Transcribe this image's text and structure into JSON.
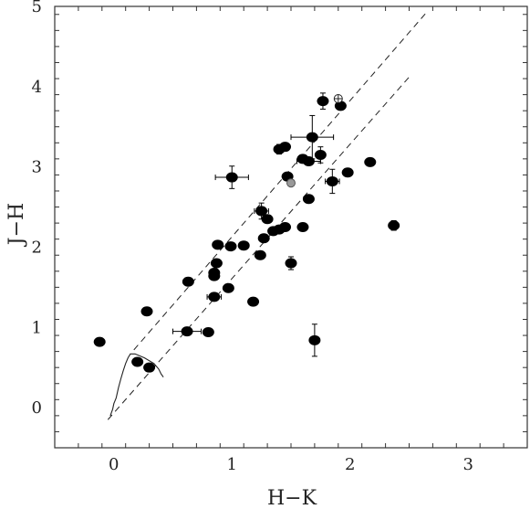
{
  "chart_data": {
    "type": "scatter",
    "title": "",
    "xlabel": "H−K",
    "ylabel": "J−H",
    "xlim": [
      -0.5,
      3.5
    ],
    "ylim": [
      -0.5,
      5
    ],
    "x_ticks": [
      "0",
      "1",
      "2",
      "3"
    ],
    "y_ticks": [
      "0",
      "1",
      "2",
      "3",
      "4",
      "5"
    ],
    "x_tick_values": [
      0,
      1,
      2,
      3
    ],
    "y_tick_values": [
      0,
      1,
      2,
      3,
      4,
      5
    ],
    "grid": false,
    "marker_color": "#000000",
    "points": [
      {
        "x": -0.12,
        "y": 0.82
      },
      {
        "x": 0.2,
        "y": 0.57
      },
      {
        "x": 0.3,
        "y": 0.5
      },
      {
        "x": 0.28,
        "y": 1.2
      },
      {
        "x": 0.62,
        "y": 0.95,
        "xerr": 0.12
      },
      {
        "x": 0.63,
        "y": 1.57
      },
      {
        "x": 0.8,
        "y": 0.94
      },
      {
        "x": 0.85,
        "y": 1.38,
        "xerr": 0.06
      },
      {
        "x": 0.85,
        "y": 1.64
      },
      {
        "x": 0.85,
        "y": 1.68
      },
      {
        "x": 0.87,
        "y": 1.8
      },
      {
        "x": 0.88,
        "y": 2.03
      },
      {
        "x": 0.97,
        "y": 1.49
      },
      {
        "x": 0.99,
        "y": 2.01
      },
      {
        "x": 1.0,
        "y": 2.87,
        "xerr": 0.14,
        "yerr": 0.14
      },
      {
        "x": 1.1,
        "y": 2.02
      },
      {
        "x": 1.18,
        "y": 1.32
      },
      {
        "x": 1.24,
        "y": 1.9
      },
      {
        "x": 1.25,
        "y": 2.45,
        "xerr": 0.06,
        "yerr": 0.1
      },
      {
        "x": 1.27,
        "y": 2.11
      },
      {
        "x": 1.3,
        "y": 2.35
      },
      {
        "x": 1.35,
        "y": 2.2
      },
      {
        "x": 1.4,
        "y": 2.22
      },
      {
        "x": 1.45,
        "y": 2.25
      },
      {
        "x": 1.4,
        "y": 3.22,
        "yerr": 0.06
      },
      {
        "x": 1.45,
        "y": 3.25
      },
      {
        "x": 1.47,
        "y": 2.88
      },
      {
        "x": 1.5,
        "y": 1.8,
        "yerr": 0.08
      },
      {
        "x": 1.6,
        "y": 2.25
      },
      {
        "x": 1.6,
        "y": 3.1
      },
      {
        "x": 1.65,
        "y": 3.07,
        "xerr": 0.1
      },
      {
        "x": 1.65,
        "y": 2.6
      },
      {
        "x": 1.68,
        "y": 3.37,
        "xerr": 0.18,
        "yerr": 0.27
      },
      {
        "x": 1.7,
        "y": 0.84,
        "yerr": 0.2
      },
      {
        "x": 1.75,
        "y": 3.15,
        "yerr": 0.1
      },
      {
        "x": 1.77,
        "y": 3.82,
        "yerr": 0.1
      },
      {
        "x": 1.85,
        "y": 2.82,
        "xerr": 0.06,
        "yerr": 0.15
      },
      {
        "x": 1.92,
        "y": 3.76,
        "xerr": 0.03
      },
      {
        "x": 1.98,
        "y": 2.93
      },
      {
        "x": 2.17,
        "y": 3.06
      },
      {
        "x": 2.37,
        "y": 2.27,
        "yerr": 0.06
      },
      {
        "x": 1.5,
        "y": 2.8,
        "style": "gray"
      },
      {
        "x": 1.9,
        "y": 3.85,
        "style": "open"
      }
    ],
    "reddening_lines": [
      {
        "x": [
          0.17,
          2.65
        ],
        "y": [
          0.72,
          4.93
        ]
      },
      {
        "x": [
          -0.05,
          2.5
        ],
        "y": [
          -0.15,
          4.12
        ]
      }
    ],
    "locus_curve": {
      "x": [
        -0.03,
        -0.01,
        0.0,
        0.02,
        0.04,
        0.06,
        0.08,
        0.1,
        0.12,
        0.14,
        0.18,
        0.26,
        0.34,
        0.38,
        0.4,
        0.42
      ],
      "y": [
        -0.1,
        -0.02,
        0.05,
        0.12,
        0.25,
        0.36,
        0.46,
        0.55,
        0.62,
        0.67,
        0.67,
        0.62,
        0.55,
        0.48,
        0.42,
        0.38
      ]
    }
  }
}
